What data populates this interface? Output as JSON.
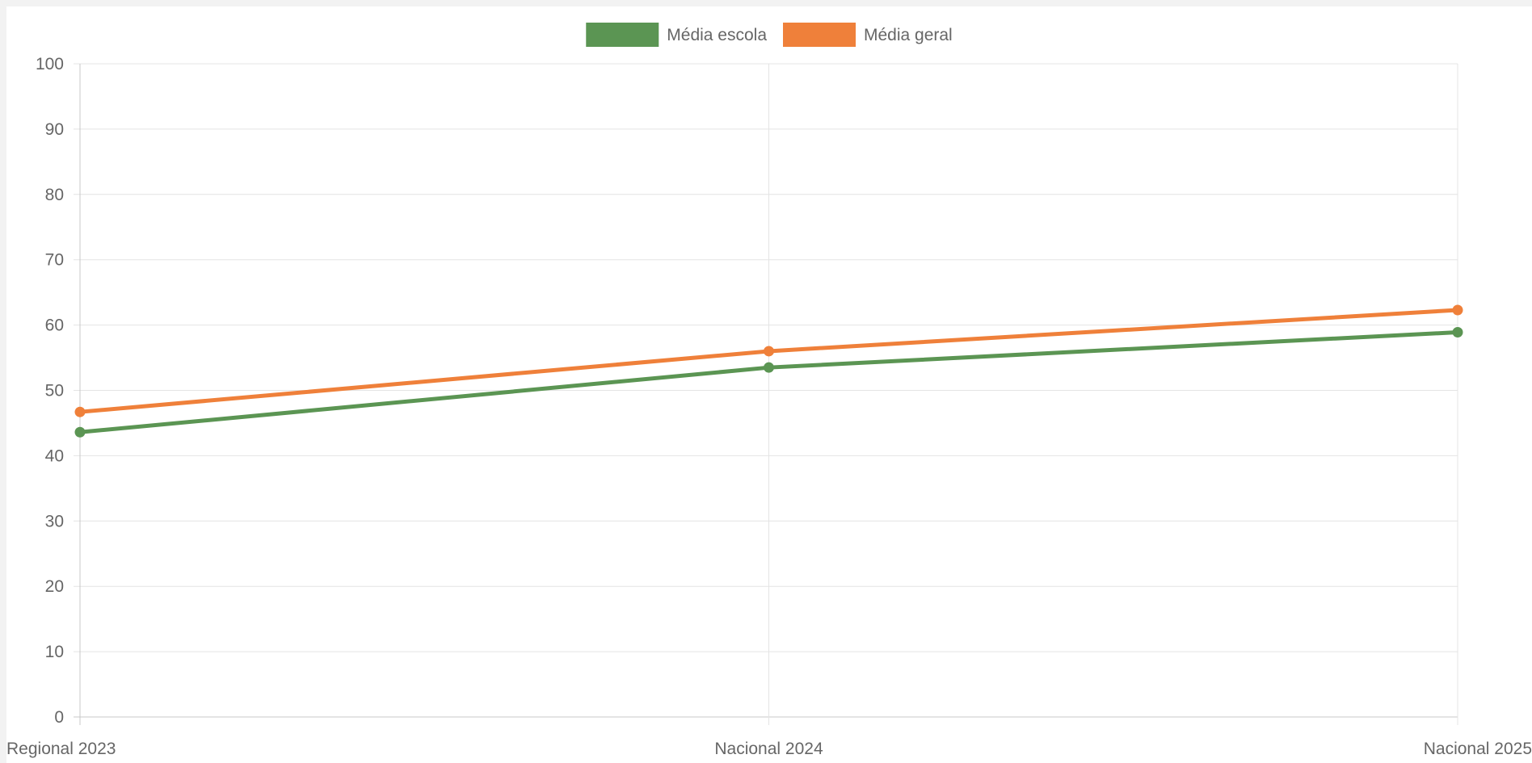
{
  "chart_data": {
    "type": "line",
    "categories": [
      "Regional 2023",
      "Nacional 2024",
      "Nacional 2025"
    ],
    "series": [
      {
        "name": "Média escola",
        "values": [
          43.6,
          53.5,
          58.9
        ],
        "color": "#5b9553"
      },
      {
        "name": "Média geral",
        "values": [
          46.7,
          56.0,
          62.3
        ],
        "color": "#ef803a"
      }
    ],
    "ylim": [
      0,
      100
    ],
    "yticks": [
      0,
      10,
      20,
      30,
      40,
      50,
      60,
      70,
      80,
      90,
      100
    ],
    "grid": true,
    "legend_position": "top-center",
    "title": "",
    "xlabel": "",
    "ylabel": ""
  }
}
